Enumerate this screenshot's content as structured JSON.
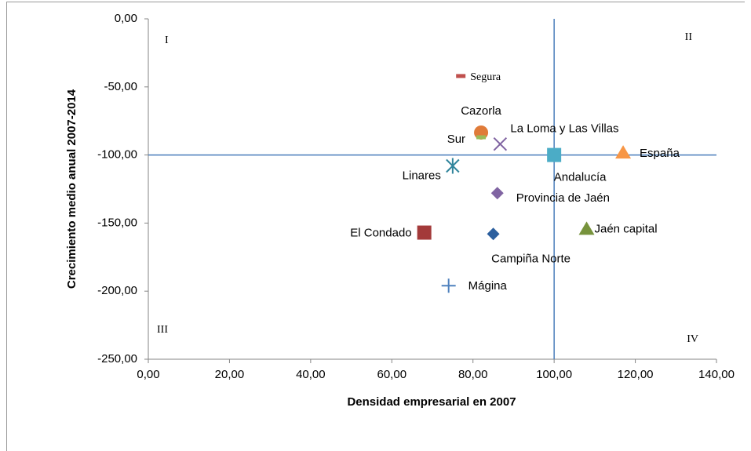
{
  "chart_data": {
    "type": "scatter",
    "x_label": "Densidad empresarial en 2007",
    "y_label": "Crecimiento medio anual 2007-2014",
    "xlim": [
      0,
      140
    ],
    "ylim": [
      -250,
      0
    ],
    "xticks": [
      {
        "value": 0,
        "label": "0,00"
      },
      {
        "value": 20,
        "label": "20,00"
      },
      {
        "value": 40,
        "label": "40,00"
      },
      {
        "value": 60,
        "label": "60,00"
      },
      {
        "value": 80,
        "label": "80,00"
      },
      {
        "value": 100,
        "label": "100,00"
      },
      {
        "value": 120,
        "label": "120,00"
      },
      {
        "value": 140,
        "label": "140,00"
      }
    ],
    "yticks": [
      {
        "value": 0,
        "label": "0,00"
      },
      {
        "value": -50,
        "label": "-50,00"
      },
      {
        "value": -100,
        "label": "-100,00"
      },
      {
        "value": -150,
        "label": "-150,00"
      },
      {
        "value": -200,
        "label": "-200,00"
      },
      {
        "value": -250,
        "label": "-250,00"
      }
    ],
    "grid": false,
    "reference_x": 100,
    "reference_y": -100,
    "reference_color": "#4a7ebb",
    "quadrants": [
      "I",
      "II",
      "III",
      "IV"
    ],
    "series": [
      {
        "name": "Segura",
        "color": "#c0504d",
        "marker": "dash",
        "x": 77,
        "y": -42
      },
      {
        "name": "Cazorla",
        "color": "#e07b39",
        "marker": "circle",
        "x": 82,
        "y": -83.5
      },
      {
        "name": "Sur",
        "color": "#9bbb59",
        "marker": "dash",
        "x": 82,
        "y": -87
      },
      {
        "name": "La Loma y Las Villas",
        "color": "#8064a2",
        "marker": "x",
        "x": 86.7,
        "y": -92
      },
      {
        "name": "Andalucía",
        "color": "#4bacc6",
        "marker": "square",
        "x": 100,
        "y": -100
      },
      {
        "name": "Linares",
        "color": "#31859c",
        "marker": "asterisk",
        "x": 75,
        "y": -108
      },
      {
        "name": "Provincia de Jaén",
        "color": "#8064a2",
        "marker": "diamond",
        "x": 86,
        "y": -128
      },
      {
        "name": "El Condado",
        "color": "#a33a3a",
        "marker": "square",
        "x": 68,
        "y": -157
      },
      {
        "name": "Campiña Norte",
        "color": "#2c5f9e",
        "marker": "diamond",
        "x": 85,
        "y": -158
      },
      {
        "name": "Jaén capital",
        "color": "#77933c",
        "marker": "triangle",
        "x": 108,
        "y": -154
      },
      {
        "name": "España",
        "color": "#f79646",
        "marker": "triangle",
        "x": 117,
        "y": -98
      },
      {
        "name": "Mágina",
        "color": "#4f81bd",
        "marker": "plus",
        "x": 74,
        "y": -196
      }
    ]
  }
}
